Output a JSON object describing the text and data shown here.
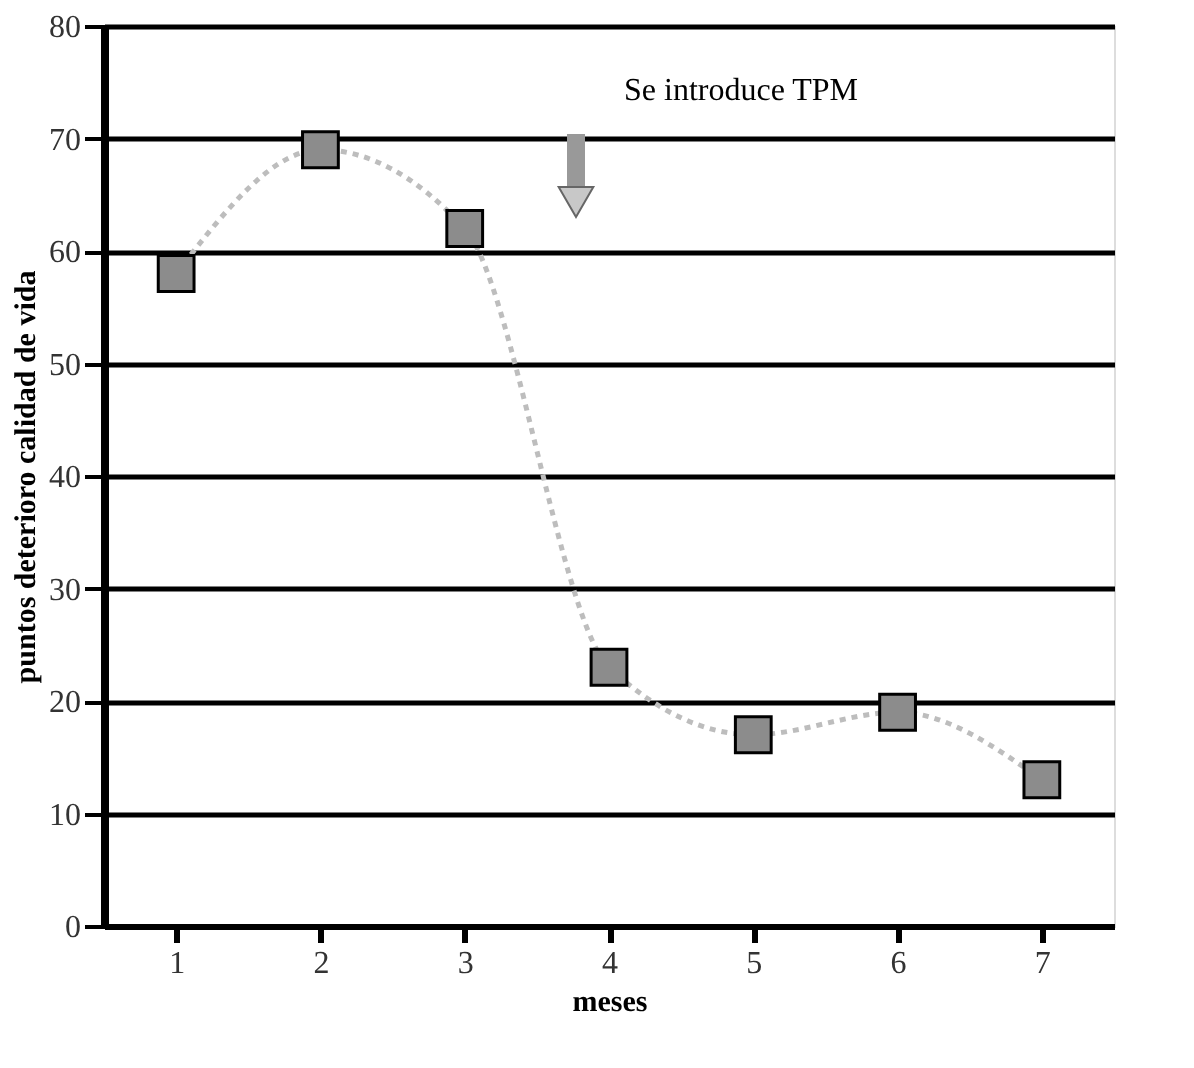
{
  "chart_data": {
    "type": "line",
    "xlabel": "meses",
    "ylabel": "puntos deterioro calidad de vida",
    "categories": [
      "1",
      "2",
      "3",
      "4",
      "5",
      "6",
      "7"
    ],
    "series": [
      {
        "color": "#bdbdbd",
        "values": [
          58,
          69,
          62,
          23,
          17,
          19,
          13
        ]
      }
    ],
    "marker": "square",
    "line_style": "dotted",
    "ylim": [
      0,
      80
    ],
    "yticks": [
      0,
      10,
      20,
      30,
      40,
      50,
      60,
      70,
      80
    ],
    "grid": "y",
    "annotations": [
      "Se introduce TPM"
    ]
  }
}
